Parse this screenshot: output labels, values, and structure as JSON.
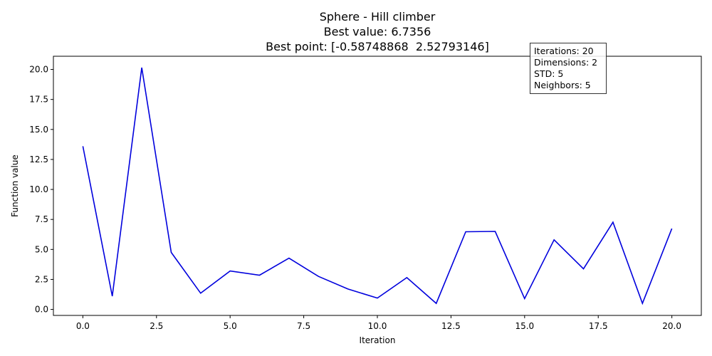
{
  "chart_data": {
    "type": "line",
    "title_lines": [
      "Sphere - Hill climber",
      "Best value: 6.7356",
      "Best point: [-0.58748868  2.52793146]"
    ],
    "xlabel": "Iteration",
    "ylabel": "Function value",
    "xlim": [
      -1.0,
      21.0
    ],
    "ylim": [
      -0.5,
      21.1
    ],
    "xticks": [
      0.0,
      2.5,
      5.0,
      7.5,
      10.0,
      12.5,
      15.0,
      17.5,
      20.0
    ],
    "xtick_labels": [
      "0.0",
      "2.5",
      "5.0",
      "7.5",
      "10.0",
      "12.5",
      "15.0",
      "17.5",
      "20.0"
    ],
    "yticks": [
      0.0,
      2.5,
      5.0,
      7.5,
      10.0,
      12.5,
      15.0,
      17.5,
      20.0
    ],
    "ytick_labels": [
      "0.0",
      "2.5",
      "5.0",
      "7.5",
      "10.0",
      "12.5",
      "15.0",
      "17.5",
      "20.0"
    ],
    "grid": false,
    "line_color": "#0000dd",
    "x": [
      0,
      1,
      2,
      3,
      4,
      5,
      6,
      7,
      8,
      9,
      10,
      11,
      12,
      13,
      14,
      15,
      16,
      17,
      18,
      19,
      20
    ],
    "values": [
      13.6,
      1.1,
      20.15,
      4.75,
      1.35,
      3.2,
      2.85,
      4.27,
      2.75,
      1.7,
      0.95,
      2.65,
      0.5,
      6.47,
      6.5,
      0.9,
      5.8,
      3.38,
      7.27,
      0.5,
      6.7356
    ],
    "annotation_lines": [
      "Iterations: 20",
      "Dimensions: 2",
      "STD: 5",
      "Neighbors: 5"
    ]
  }
}
